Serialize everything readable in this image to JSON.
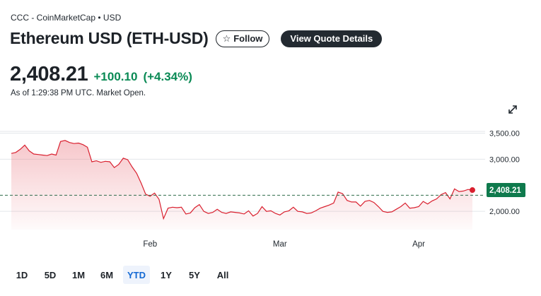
{
  "header": {
    "source": "CCC - CoinMarketCap • USD",
    "title": "Ethereum USD (ETH-USD)",
    "follow_label": "Follow",
    "quote_label": "View Quote Details"
  },
  "quote": {
    "price": "2,408.21",
    "change": "+100.10",
    "change_pct": "(+4.34%)",
    "as_of": "As of 1:29:38 PM UTC. Market Open."
  },
  "icons": {
    "star": "star-outline-icon",
    "expand": "expand-arrows-icon"
  },
  "colors": {
    "line": "#d9202f",
    "positive": "#0a8a55",
    "price_badge": "#0f7a4d",
    "reference_line": "#2f6b4a",
    "active_range": "#1469d3"
  },
  "chart_data": {
    "type": "area",
    "ylim": [
      1650,
      3750
    ],
    "yticks": [
      2000,
      3000,
      3500
    ],
    "ytick_labels": [
      "2,000.00",
      "3,000.00",
      "3,500.00"
    ],
    "x_labels": [
      "Feb",
      "Mar",
      "Apr"
    ],
    "x_label_index": [
      31,
      60,
      91
    ],
    "reference_value": 2308.11,
    "last_label": "2,408.21",
    "grid": true,
    "series": [
      {
        "values": [
          3110,
          3130,
          3190,
          3270,
          3160,
          3100,
          3090,
          3080,
          3070,
          3100,
          3080,
          3340,
          3360,
          3320,
          3300,
          3310,
          3280,
          3230,
          2950,
          2970,
          2940,
          2960,
          2950,
          2840,
          2900,
          3020,
          2990,
          2850,
          2730,
          2540,
          2330,
          2290,
          2350,
          2230,
          1860,
          2060,
          2080,
          2070,
          2080,
          1950,
          1970,
          2070,
          2130,
          2000,
          1960,
          1980,
          2040,
          1980,
          1960,
          1990,
          1980,
          1970,
          1950,
          2010,
          1910,
          1960,
          2090,
          2000,
          2010,
          1960,
          1930,
          1990,
          2010,
          2080,
          2000,
          1990,
          1960,
          1970,
          2010,
          2060,
          2090,
          2120,
          2160,
          2370,
          2340,
          2210,
          2180,
          2180,
          2100,
          2190,
          2210,
          2170,
          2090,
          2000,
          1980,
          1990,
          2040,
          2090,
          2160,
          2060,
          2070,
          2090,
          2190,
          2140,
          2200,
          2240,
          2320,
          2360,
          2240,
          2430,
          2380,
          2390,
          2420,
          2408.21
        ]
      }
    ]
  },
  "ranges": [
    "1D",
    "5D",
    "1M",
    "6M",
    "YTD",
    "1Y",
    "5Y",
    "All"
  ],
  "active_range": "YTD"
}
